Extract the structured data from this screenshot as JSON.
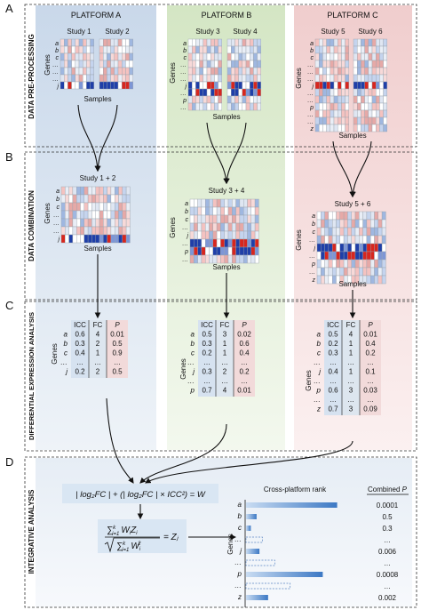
{
  "section_letters": [
    "A",
    "B",
    "C",
    "D"
  ],
  "row_labels": {
    "a": "DATA PRE-PROCESSING",
    "b": "DATA COMBINATION",
    "c": "DIFFERENTIAL EXPRESSION ANALYSIS",
    "d": "INTEGRATIVE ANALYSIS"
  },
  "platforms": [
    "PLATFORM A",
    "PLATFORM B",
    "PLATFORM C"
  ],
  "studies": [
    "Study 1",
    "Study 2",
    "Study 3",
    "Study 4",
    "Study 5",
    "Study 6"
  ],
  "combined_studies": [
    "Study 1 + 2",
    "Study 3 + 4",
    "Study 5 + 6"
  ],
  "axis_genes": "Genes",
  "axis_samples": "Samples",
  "gene_labels": {
    "a": "a",
    "b": "b",
    "c": "c",
    "dots": "…",
    "ellipsis_v": "⋮",
    "j": "j",
    "p": "p",
    "z": "z"
  },
  "table_headers": [
    "ICC",
    "FC",
    "P"
  ],
  "tables": [
    {
      "rows": [
        {
          "gene": "a",
          "icc": "0.6",
          "fc": "4",
          "p": "0.01"
        },
        {
          "gene": "b",
          "icc": "0.3",
          "fc": "2",
          "p": "0.5"
        },
        {
          "gene": "c",
          "icc": "0.4",
          "fc": "1",
          "p": "0.9"
        },
        {
          "gene": "…",
          "icc": "…",
          "fc": "…",
          "p": "…"
        },
        {
          "gene": "j",
          "icc": "0.2",
          "fc": "2",
          "p": "0.5"
        }
      ]
    },
    {
      "rows": [
        {
          "gene": "a",
          "icc": "0.5",
          "fc": "3",
          "p": "0.02"
        },
        {
          "gene": "b",
          "icc": "0.3",
          "fc": "1",
          "p": "0.6"
        },
        {
          "gene": "c",
          "icc": "0.2",
          "fc": "1",
          "p": "0.4"
        },
        {
          "gene": "…",
          "icc": "…",
          "fc": "…",
          "p": "…"
        },
        {
          "gene": "j",
          "icc": "0.3",
          "fc": "2",
          "p": "0.2"
        },
        {
          "gene": "…",
          "icc": "…",
          "fc": "…",
          "p": "…"
        },
        {
          "gene": "p",
          "icc": "0.7",
          "fc": "4",
          "p": "0.01"
        }
      ]
    },
    {
      "rows": [
        {
          "gene": "a",
          "icc": "0.5",
          "fc": "4",
          "p": "0.01"
        },
        {
          "gene": "b",
          "icc": "0.2",
          "fc": "1",
          "p": "0.4"
        },
        {
          "gene": "c",
          "icc": "0.3",
          "fc": "1",
          "p": "0.2"
        },
        {
          "gene": "…",
          "icc": "…",
          "fc": "…",
          "p": "…"
        },
        {
          "gene": "j",
          "icc": "0.4",
          "fc": "1",
          "p": "0.1"
        },
        {
          "gene": "…",
          "icc": "…",
          "fc": "…",
          "p": "…"
        },
        {
          "gene": "p",
          "icc": "0.6",
          "fc": "3",
          "p": "0.03"
        },
        {
          "gene": "…",
          "icc": "…",
          "fc": "…",
          "p": "…"
        },
        {
          "gene": "z",
          "icc": "0.7",
          "fc": "3",
          "p": "0.09"
        }
      ]
    }
  ],
  "weight_formula": "| log₂FC | + (| log₂FC | × ICC²) = W",
  "combine_formula_rhs": "= Zⱼ",
  "rank_title": "Cross-platform rank",
  "combined_p_title": "Combined",
  "combined_p_symbol": "P",
  "rank_rows": [
    {
      "gene": "a",
      "rank": 0.95,
      "p": "0.0001"
    },
    {
      "gene": "b",
      "rank": 0.11,
      "p": "0.5"
    },
    {
      "gene": "c",
      "rank": 0.05,
      "p": "0.3"
    },
    {
      "gene": "…",
      "rank": 0.17,
      "p": "…"
    },
    {
      "gene": "j",
      "rank": 0.14,
      "p": "0.006"
    },
    {
      "gene": "…",
      "rank": 0.3,
      "p": "…"
    },
    {
      "gene": "p",
      "rank": 0.8,
      "p": "0.0008"
    },
    {
      "gene": "…",
      "rank": 0.46,
      "p": "…"
    },
    {
      "gene": "z",
      "rank": 0.23,
      "p": "0.002"
    }
  ],
  "colors": {
    "platform_a": "#d7e2ee",
    "platform_b": "#e1ebd6",
    "platform_c": "#f1dada",
    "heat_red": "#d7261e",
    "heat_blue": "#1f3fa8",
    "bar_blue": "#3c78c4",
    "formula_box": "#d9e6f3"
  }
}
